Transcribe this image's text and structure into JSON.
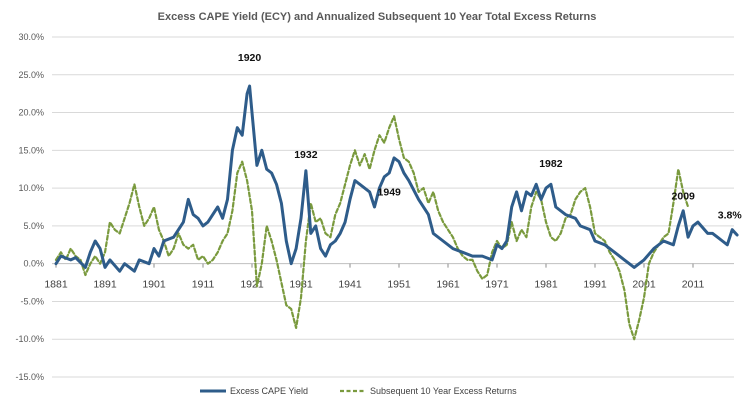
{
  "chart_data": {
    "type": "line",
    "title": "Excess CAPE Yield (ECY) and Annualized Subsequent 10 Year Total Excess Returns",
    "xlabel": "",
    "ylabel": "",
    "xlim": [
      1881,
      2020
    ],
    "ylim": [
      -15,
      30
    ],
    "y_ticks": [
      -15,
      -10,
      -5,
      0,
      5,
      10,
      15,
      20,
      25,
      30
    ],
    "y_tick_labels": [
      "-15.0%",
      "-10.0%",
      "-5.0%",
      "0.0%",
      "5.0%",
      "10.0%",
      "15.0%",
      "20.0%",
      "25.0%",
      "30.0%"
    ],
    "x_ticks": [
      1881,
      1891,
      1901,
      1911,
      1921,
      1931,
      1941,
      1951,
      1961,
      1971,
      1981,
      1991,
      2001,
      2011
    ],
    "x_tick_labels": [
      "1881",
      "1891",
      "1901",
      "1911",
      "1921",
      "1931",
      "1941",
      "1951",
      "1961",
      "1971",
      "1981",
      "1991",
      "2001",
      "2011"
    ],
    "grid": "horizontal",
    "legend_position": "bottom",
    "series": [
      {
        "name": "Excess CAPE Yield",
        "color": "#2e5c8a",
        "style": "solid",
        "points": [
          [
            1881,
            0.0
          ],
          [
            1882,
            1.0
          ],
          [
            1884,
            0.5
          ],
          [
            1885,
            0.8
          ],
          [
            1887,
            -0.5
          ],
          [
            1888,
            1.5
          ],
          [
            1889,
            3.0
          ],
          [
            1890,
            2.0
          ],
          [
            1891,
            -0.5
          ],
          [
            1892,
            0.5
          ],
          [
            1894,
            -1.0
          ],
          [
            1895,
            0.0
          ],
          [
            1897,
            -1.0
          ],
          [
            1898,
            0.5
          ],
          [
            1900,
            0.0
          ],
          [
            1901,
            2.0
          ],
          [
            1902,
            1.0
          ],
          [
            1903,
            3.0
          ],
          [
            1905,
            3.5
          ],
          [
            1907,
            5.5
          ],
          [
            1908,
            8.5
          ],
          [
            1909,
            6.5
          ],
          [
            1910,
            6.0
          ],
          [
            1911,
            5.0
          ],
          [
            1912,
            5.5
          ],
          [
            1914,
            7.5
          ],
          [
            1915,
            6.0
          ],
          [
            1916,
            8.5
          ],
          [
            1917,
            15.0
          ],
          [
            1918,
            18.0
          ],
          [
            1919,
            17.0
          ],
          [
            1920,
            22.5
          ],
          [
            1920.5,
            23.5
          ],
          [
            1921,
            20.0
          ],
          [
            1922,
            13.0
          ],
          [
            1923,
            15.0
          ],
          [
            1924,
            12.5
          ],
          [
            1925,
            12.0
          ],
          [
            1926,
            10.5
          ],
          [
            1927,
            8.0
          ],
          [
            1928,
            3.0
          ],
          [
            1929,
            0.0
          ],
          [
            1930,
            2.0
          ],
          [
            1931,
            6.0
          ],
          [
            1932,
            12.3
          ],
          [
            1933,
            4.0
          ],
          [
            1934,
            5.0
          ],
          [
            1935,
            2.0
          ],
          [
            1936,
            1.0
          ],
          [
            1937,
            2.5
          ],
          [
            1938,
            3.0
          ],
          [
            1939,
            4.0
          ],
          [
            1940,
            5.5
          ],
          [
            1941,
            8.5
          ],
          [
            1942,
            11.0
          ],
          [
            1943,
            10.5
          ],
          [
            1945,
            9.5
          ],
          [
            1946,
            7.5
          ],
          [
            1947,
            10.0
          ],
          [
            1948,
            11.5
          ],
          [
            1949,
            12.0
          ],
          [
            1950,
            14.0
          ],
          [
            1951,
            13.5
          ],
          [
            1952,
            12.0
          ],
          [
            1953,
            11.0
          ],
          [
            1955,
            8.5
          ],
          [
            1957,
            6.5
          ],
          [
            1958,
            4.0
          ],
          [
            1960,
            3.0
          ],
          [
            1962,
            2.0
          ],
          [
            1964,
            1.5
          ],
          [
            1966,
            1.0
          ],
          [
            1968,
            1.0
          ],
          [
            1970,
            0.5
          ],
          [
            1971,
            2.5
          ],
          [
            1972,
            2.0
          ],
          [
            1973,
            3.0
          ],
          [
            1974,
            7.5
          ],
          [
            1975,
            9.5
          ],
          [
            1976,
            7.0
          ],
          [
            1977,
            9.5
          ],
          [
            1978,
            9.0
          ],
          [
            1979,
            10.5
          ],
          [
            1980,
            8.5
          ],
          [
            1981,
            10.0
          ],
          [
            1982,
            10.5
          ],
          [
            1983,
            7.5
          ],
          [
            1985,
            6.5
          ],
          [
            1987,
            6.0
          ],
          [
            1988,
            5.0
          ],
          [
            1990,
            4.5
          ],
          [
            1991,
            3.0
          ],
          [
            1993,
            2.5
          ],
          [
            1995,
            1.5
          ],
          [
            1997,
            0.5
          ],
          [
            1999,
            -0.5
          ],
          [
            2001,
            0.5
          ],
          [
            2003,
            2.0
          ],
          [
            2005,
            3.0
          ],
          [
            2007,
            2.5
          ],
          [
            2008,
            5.0
          ],
          [
            2009,
            7.0
          ],
          [
            2010,
            3.5
          ],
          [
            2011,
            5.0
          ],
          [
            2012,
            5.5
          ],
          [
            2014,
            4.0
          ],
          [
            2015,
            4.0
          ],
          [
            2016,
            3.5
          ],
          [
            2017,
            3.0
          ],
          [
            2018,
            2.5
          ],
          [
            2019,
            4.5
          ],
          [
            2020,
            3.8
          ]
        ]
      },
      {
        "name": "Subsequent 10 Year Excess Returns",
        "color": "#7a9a3e",
        "style": "dashed",
        "points": [
          [
            1881,
            0.5
          ],
          [
            1882,
            1.5
          ],
          [
            1883,
            0.5
          ],
          [
            1884,
            2.0
          ],
          [
            1885,
            1.0
          ],
          [
            1886,
            0.5
          ],
          [
            1887,
            -1.5
          ],
          [
            1888,
            0.0
          ],
          [
            1889,
            1.0
          ],
          [
            1890,
            0.0
          ],
          [
            1891,
            1.5
          ],
          [
            1892,
            5.5
          ],
          [
            1893,
            4.5
          ],
          [
            1894,
            4.0
          ],
          [
            1895,
            6.0
          ],
          [
            1896,
            8.0
          ],
          [
            1897,
            10.5
          ],
          [
            1898,
            7.5
          ],
          [
            1899,
            5.0
          ],
          [
            1900,
            6.0
          ],
          [
            1901,
            7.5
          ],
          [
            1902,
            4.5
          ],
          [
            1903,
            3.0
          ],
          [
            1904,
            1.0
          ],
          [
            1905,
            2.0
          ],
          [
            1906,
            4.0
          ],
          [
            1907,
            2.5
          ],
          [
            1908,
            2.0
          ],
          [
            1909,
            2.5
          ],
          [
            1910,
            0.5
          ],
          [
            1911,
            1.0
          ],
          [
            1912,
            0.0
          ],
          [
            1913,
            0.5
          ],
          [
            1914,
            1.5
          ],
          [
            1915,
            3.0
          ],
          [
            1916,
            4.0
          ],
          [
            1917,
            7.0
          ],
          [
            1918,
            12.0
          ],
          [
            1919,
            13.5
          ],
          [
            1920,
            11.0
          ],
          [
            1921,
            7.0
          ],
          [
            1922,
            -3.0
          ],
          [
            1923,
            0.0
          ],
          [
            1924,
            5.0
          ],
          [
            1925,
            3.0
          ],
          [
            1926,
            0.5
          ],
          [
            1927,
            -2.5
          ],
          [
            1928,
            -5.5
          ],
          [
            1929,
            -6.0
          ],
          [
            1930,
            -8.5
          ],
          [
            1931,
            -4.5
          ],
          [
            1932,
            3.0
          ],
          [
            1933,
            8.0
          ],
          [
            1934,
            5.5
          ],
          [
            1935,
            6.0
          ],
          [
            1936,
            4.0
          ],
          [
            1937,
            3.5
          ],
          [
            1938,
            6.5
          ],
          [
            1939,
            8.0
          ],
          [
            1940,
            10.5
          ],
          [
            1941,
            13.0
          ],
          [
            1942,
            15.0
          ],
          [
            1943,
            13.0
          ],
          [
            1944,
            14.5
          ],
          [
            1945,
            12.5
          ],
          [
            1946,
            15.0
          ],
          [
            1947,
            17.0
          ],
          [
            1948,
            16.0
          ],
          [
            1949,
            18.0
          ],
          [
            1950,
            19.5
          ],
          [
            1951,
            16.5
          ],
          [
            1952,
            14.0
          ],
          [
            1953,
            13.5
          ],
          [
            1954,
            12.0
          ],
          [
            1955,
            9.5
          ],
          [
            1956,
            10.0
          ],
          [
            1957,
            8.0
          ],
          [
            1958,
            9.5
          ],
          [
            1959,
            7.0
          ],
          [
            1960,
            5.5
          ],
          [
            1961,
            4.5
          ],
          [
            1962,
            3.5
          ],
          [
            1963,
            2.0
          ],
          [
            1964,
            1.0
          ],
          [
            1965,
            0.5
          ],
          [
            1966,
            0.5
          ],
          [
            1967,
            -1.0
          ],
          [
            1968,
            -2.0
          ],
          [
            1969,
            -1.5
          ],
          [
            1970,
            1.5
          ],
          [
            1971,
            3.0
          ],
          [
            1972,
            2.0
          ],
          [
            1973,
            2.5
          ],
          [
            1974,
            5.5
          ],
          [
            1975,
            3.0
          ],
          [
            1976,
            4.5
          ],
          [
            1977,
            3.5
          ],
          [
            1978,
            7.5
          ],
          [
            1979,
            9.5
          ],
          [
            1980,
            8.5
          ],
          [
            1981,
            5.5
          ],
          [
            1982,
            3.5
          ],
          [
            1983,
            3.0
          ],
          [
            1984,
            4.0
          ],
          [
            1985,
            6.0
          ],
          [
            1986,
            6.5
          ],
          [
            1987,
            8.5
          ],
          [
            1988,
            9.5
          ],
          [
            1989,
            10.0
          ],
          [
            1990,
            7.5
          ],
          [
            1991,
            4.0
          ],
          [
            1992,
            3.5
          ],
          [
            1993,
            3.0
          ],
          [
            1994,
            1.5
          ],
          [
            1995,
            0.5
          ],
          [
            1996,
            -1.0
          ],
          [
            1997,
            -3.5
          ],
          [
            1998,
            -8.0
          ],
          [
            1999,
            -10.0
          ],
          [
            2000,
            -7.5
          ],
          [
            2001,
            -4.5
          ],
          [
            2002,
            0.0
          ],
          [
            2003,
            1.5
          ],
          [
            2004,
            2.5
          ],
          [
            2005,
            3.5
          ],
          [
            2006,
            4.0
          ],
          [
            2007,
            8.0
          ],
          [
            2008,
            12.5
          ],
          [
            2009,
            9.5
          ],
          [
            2010,
            7.5
          ]
        ]
      }
    ],
    "annotations": [
      {
        "text": "1920",
        "x": 1920.5,
        "y": 26.8
      },
      {
        "text": "1932",
        "x": 1932.0,
        "y": 14.0
      },
      {
        "text": "1949",
        "x": 1949.0,
        "y": 9.0
      },
      {
        "text": "1982",
        "x": 1982.0,
        "y": 12.8
      },
      {
        "text": "2009",
        "x": 2009.0,
        "y": 8.5
      },
      {
        "text": "3.8%",
        "x": 2018.5,
        "y": 6.0
      }
    ]
  }
}
